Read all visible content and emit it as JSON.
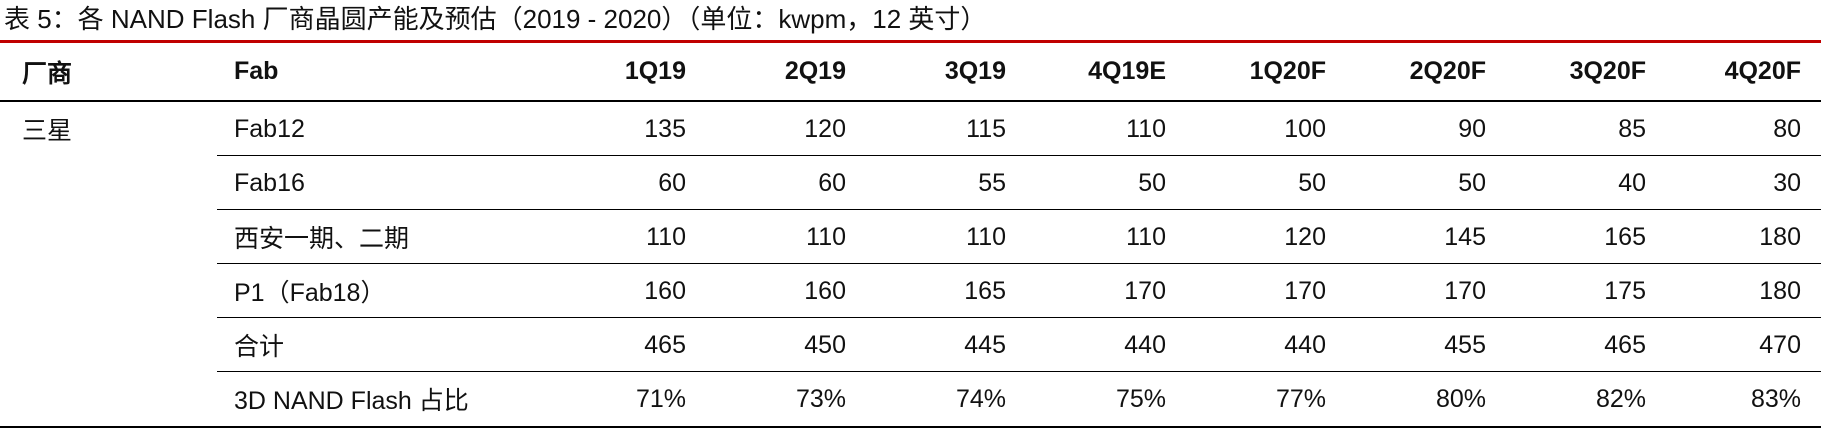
{
  "caption": "表 5：各 NAND Flash 厂商晶圆产能及预估（2019 - 2020）（单位：kwpm，12 英寸）",
  "table": {
    "headers": {
      "vendor": "厂商",
      "fab": "Fab",
      "quarters": [
        "1Q19",
        "2Q19",
        "3Q19",
        "4Q19E",
        "1Q20F",
        "2Q20F",
        "3Q20F",
        "4Q20F"
      ]
    },
    "rows": [
      {
        "vendor": "三星",
        "fab": "Fab12",
        "values": [
          "135",
          "120",
          "115",
          "110",
          "100",
          "90",
          "85",
          "80"
        ]
      },
      {
        "vendor": "",
        "fab": "Fab16",
        "values": [
          "60",
          "60",
          "55",
          "50",
          "50",
          "50",
          "40",
          "30"
        ]
      },
      {
        "vendor": "",
        "fab": "西安一期、二期",
        "values": [
          "110",
          "110",
          "110",
          "110",
          "120",
          "145",
          "165",
          "180"
        ]
      },
      {
        "vendor": "",
        "fab": "P1（Fab18）",
        "values": [
          "160",
          "160",
          "165",
          "170",
          "170",
          "170",
          "175",
          "180"
        ]
      },
      {
        "vendor": "",
        "fab": "合计",
        "values": [
          "465",
          "450",
          "445",
          "440",
          "440",
          "455",
          "465",
          "470"
        ]
      },
      {
        "vendor": "",
        "fab": "3D NAND Flash 占比",
        "values": [
          "71%",
          "73%",
          "74%",
          "75%",
          "77%",
          "80%",
          "82%",
          "83%"
        ]
      }
    ]
  }
}
